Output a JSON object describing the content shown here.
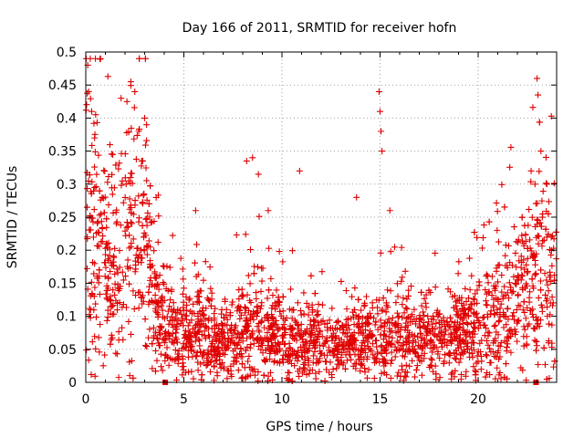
{
  "chart_data": {
    "type": "scatter",
    "title": "Day 166 of 2011, SRMTID for receiver hofn",
    "xlabel": "GPS time / hours",
    "ylabel": "SRMTID / TECUs",
    "xlim": [
      0,
      24
    ],
    "ylim": [
      0,
      0.5
    ],
    "xticks": [
      0,
      5,
      10,
      15,
      20
    ],
    "yticks": [
      0,
      0.05,
      0.1,
      0.15,
      0.2,
      0.25,
      0.3,
      0.35,
      0.4,
      0.45,
      0.5
    ],
    "grid": true,
    "marker": "plus",
    "series_color": "#e00000",
    "envelope": {
      "x": [
        0,
        0.3,
        0.6,
        1,
        1.5,
        2,
        2.5,
        3,
        3.4,
        3.8,
        4.5,
        5,
        6,
        7,
        8,
        9,
        10,
        11,
        12,
        13,
        14,
        15,
        16,
        17,
        18,
        19,
        20,
        21,
        22,
        23,
        24
      ],
      "y": [
        0.25,
        0.24,
        0.2,
        0.17,
        0.16,
        0.2,
        0.22,
        0.2,
        0.15,
        0.09,
        0.08,
        0.075,
        0.07,
        0.065,
        0.08,
        0.085,
        0.07,
        0.065,
        0.06,
        0.055,
        0.06,
        0.065,
        0.075,
        0.07,
        0.065,
        0.07,
        0.08,
        0.1,
        0.13,
        0.16,
        0.15
      ]
    },
    "spikes": [
      {
        "x": 0.1,
        "y": 0.48
      },
      {
        "x": 0.15,
        "y": 0.44
      },
      {
        "x": 0.3,
        "y": 0.41
      },
      {
        "x": 0.45,
        "y": 0.37
      },
      {
        "x": 1.8,
        "y": 0.43
      },
      {
        "x": 2.1,
        "y": 0.425
      },
      {
        "x": 2.3,
        "y": 0.455
      },
      {
        "x": 2.5,
        "y": 0.44
      },
      {
        "x": 2.7,
        "y": 0.38
      },
      {
        "x": 3.0,
        "y": 0.4
      },
      {
        "x": 3.1,
        "y": 0.39
      },
      {
        "x": 5.6,
        "y": 0.26
      },
      {
        "x": 8.2,
        "y": 0.335
      },
      {
        "x": 8.5,
        "y": 0.34
      },
      {
        "x": 8.8,
        "y": 0.315
      },
      {
        "x": 9.3,
        "y": 0.26
      },
      {
        "x": 10.9,
        "y": 0.32
      },
      {
        "x": 13.8,
        "y": 0.28
      },
      {
        "x": 14.95,
        "y": 0.44
      },
      {
        "x": 15.0,
        "y": 0.41
      },
      {
        "x": 15.05,
        "y": 0.38
      },
      {
        "x": 15.1,
        "y": 0.35
      },
      {
        "x": 15.5,
        "y": 0.26
      },
      {
        "x": 22.7,
        "y": 0.32
      },
      {
        "x": 22.9,
        "y": 0.3
      },
      {
        "x": 23.0,
        "y": 0.46
      },
      {
        "x": 23.05,
        "y": 0.435
      },
      {
        "x": 23.2,
        "y": 0.35
      },
      {
        "x": 23.5,
        "y": 0.3
      }
    ],
    "axis_markers": [
      {
        "x": 4.05,
        "y": 0
      },
      {
        "x": 22.95,
        "y": 0
      }
    ]
  }
}
